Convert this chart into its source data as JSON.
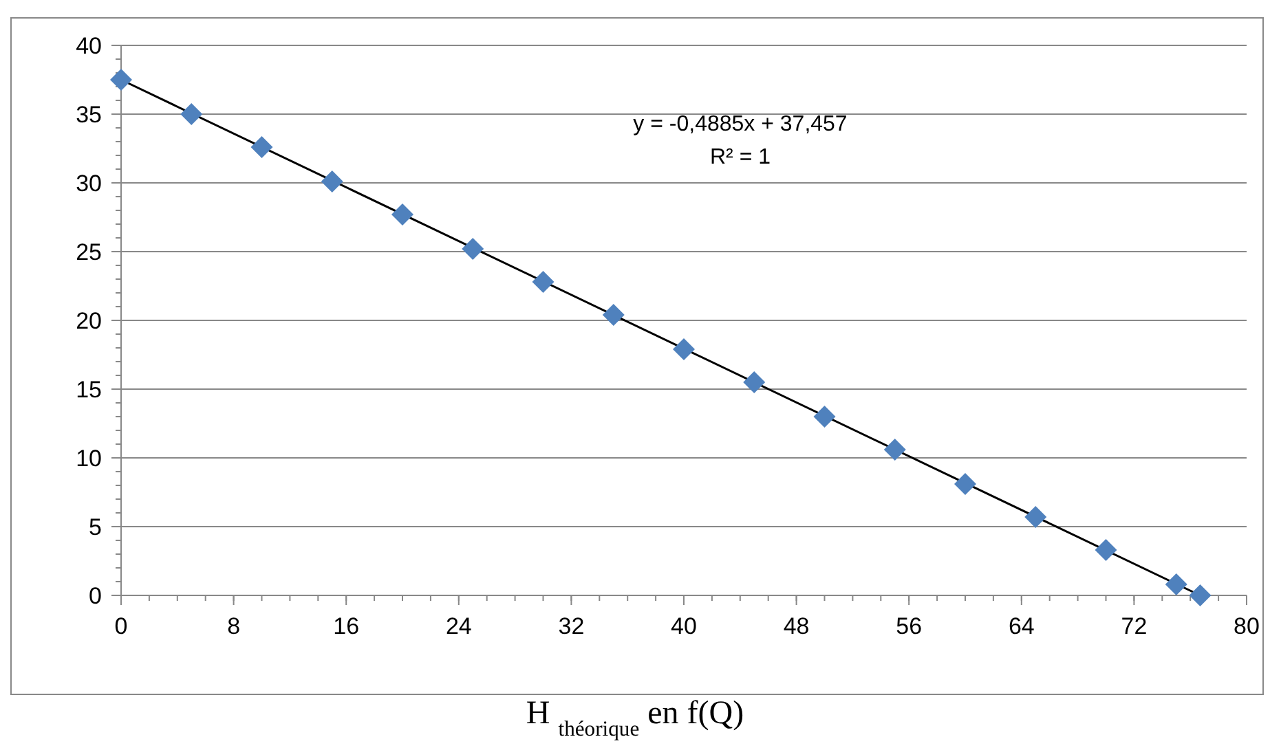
{
  "chart_data": {
    "type": "scatter",
    "xlabel": "H $_{théorique}$ en f(Q)",
    "xlim": [
      0,
      80
    ],
    "xticks": [
      0,
      8,
      16,
      24,
      32,
      40,
      48,
      56,
      64,
      72,
      80
    ],
    "ylim": [
      0,
      40
    ],
    "yticks": [
      0,
      5,
      10,
      15,
      20,
      25,
      30,
      35,
      40
    ],
    "grid": "y",
    "annotations": [
      "y = -0,4885x + 37,457",
      "R² = 1"
    ],
    "series": [
      {
        "marker": "diamond",
        "color": "#4f81bd",
        "x": [
          0,
          5,
          10,
          15,
          20,
          25,
          30,
          35,
          40,
          45,
          50,
          55,
          60,
          65,
          70,
          75,
          76.7
        ],
        "values": [
          37.5,
          35.0,
          32.6,
          30.1,
          27.7,
          25.2,
          22.8,
          20.4,
          17.9,
          15.5,
          13.0,
          10.6,
          8.1,
          5.7,
          3.3,
          0.8,
          0.0
        ]
      },
      {
        "type": "line",
        "marker": "none",
        "line_style": "solid",
        "color": "#000000",
        "x": [
          0,
          76.7
        ],
        "values": [
          37.5,
          0.0
        ]
      }
    ]
  }
}
